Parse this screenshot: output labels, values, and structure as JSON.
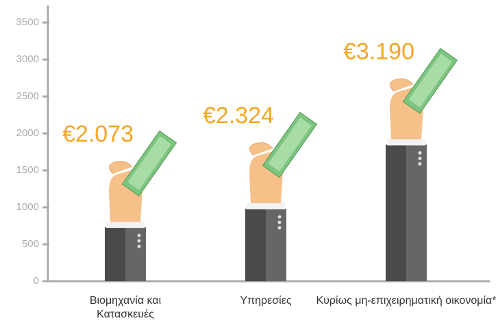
{
  "chart_data": {
    "type": "bar",
    "categories": [
      "Βιομηχανία και Κατασκευές",
      "Υπηρεσίες",
      "Κυρίως μη-επιχειρηματική οικονομία*"
    ],
    "values": [
      2073,
      2324,
      3190
    ],
    "value_labels": [
      "€2.073",
      "€2.324",
      "€3.190"
    ],
    "color": "#4a4a4a",
    "label_color": "#f5a623",
    "ylim": [
      0,
      3500
    ],
    "yticks": [
      0,
      500,
      1000,
      1500,
      2000,
      2500,
      3000,
      3500
    ]
  }
}
